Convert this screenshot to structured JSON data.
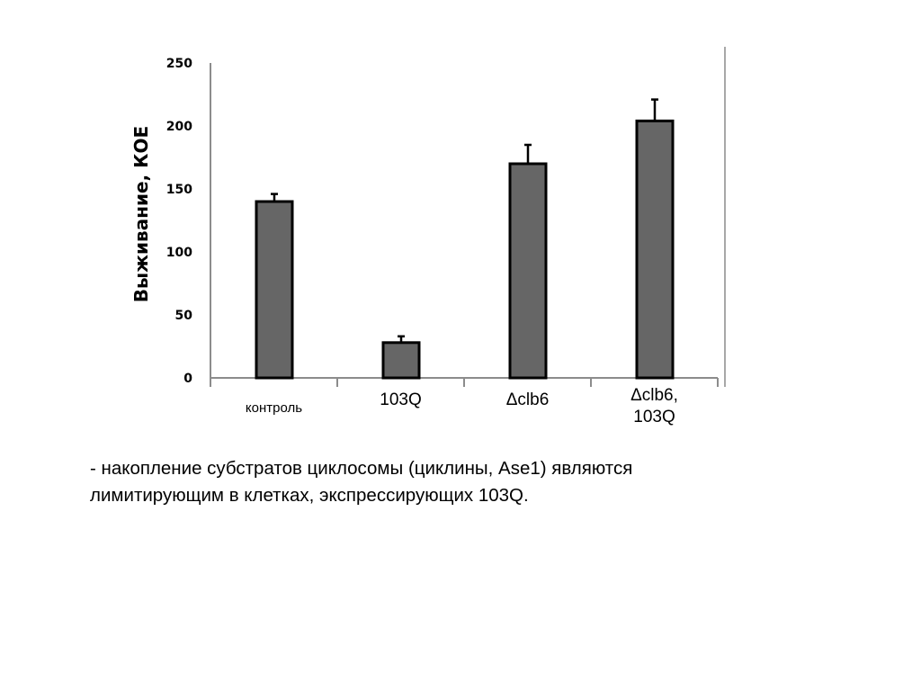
{
  "chart_data": {
    "type": "bar",
    "categories": [
      [
        "контроль"
      ],
      [
        "103Q"
      ],
      [
        "Δclb6"
      ],
      [
        "Δclb6,",
        "103Q"
      ]
    ],
    "values": [
      140,
      28,
      170,
      204
    ],
    "errors": [
      6,
      5,
      15,
      17
    ],
    "ylabel": "Выживание, КОЕ",
    "ylim": [
      0,
      250
    ],
    "yticks": [
      0,
      50,
      100,
      150,
      200,
      250
    ],
    "grid": false,
    "colors": {
      "bar": "#666666",
      "outline": "#000000",
      "axis": "#8c8c8c"
    }
  },
  "caption": {
    "lines": [
      "- накопление субстратов циклосомы (циклины, Ase1) являются",
      "лимитирующим в клетках, экспрессирующих 103Q."
    ]
  }
}
